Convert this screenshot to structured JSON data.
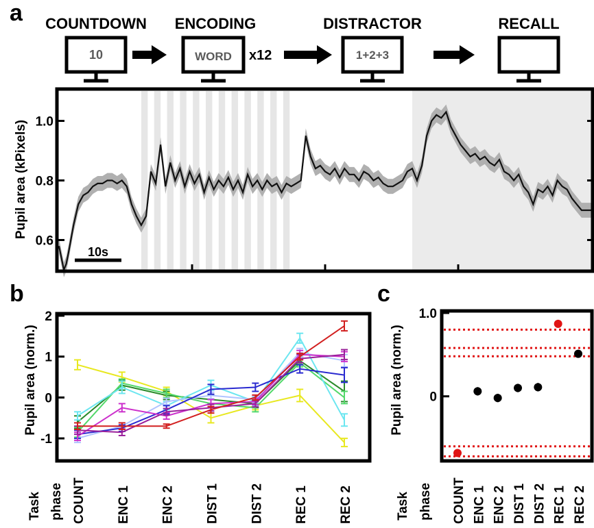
{
  "panels": {
    "a": {
      "letter": "a",
      "flow": {
        "stages": [
          {
            "label": "COUNTDOWN",
            "screen_text": "10"
          },
          {
            "label": "ENCODING",
            "screen_text": "WORD",
            "suffix": "x12"
          },
          {
            "label": "DISTRACTOR",
            "screen_text": "1+2+3"
          },
          {
            "label": "RECALL",
            "screen_text": ""
          }
        ]
      },
      "scale_bar_label": "10s"
    },
    "b": {
      "letter": "b",
      "task_phase_label_1": "Task",
      "task_phase_label_2": "phase"
    },
    "c": {
      "letter": "c",
      "task_phase_label_1": "Task",
      "task_phase_label_2": "phase"
    }
  },
  "chart_data": [
    {
      "id": "a",
      "type": "line",
      "xlabel": "",
      "ylabel": "Pupil area (kPixels)",
      "yticks": [
        0.6,
        0.8,
        1.0
      ],
      "ylim": [
        0.5,
        1.1
      ],
      "time_range_s": [
        0,
        110
      ],
      "scale_bar_s": 10,
      "recall_shaded_range_s": [
        73,
        110
      ],
      "encoding_stripes_range_s": [
        17,
        49
      ],
      "encoding_stripe_count": 12,
      "series": [
        {
          "t": [
            0,
            1,
            1.5,
            2,
            3,
            4,
            5,
            6,
            7,
            8,
            9,
            10,
            11,
            12,
            13,
            14,
            15,
            16,
            17,
            18,
            19,
            20,
            21,
            22,
            23,
            24,
            25,
            26,
            27,
            28,
            29,
            30,
            31,
            32,
            33,
            34,
            35,
            36,
            37,
            38,
            39,
            40,
            41,
            42,
            43,
            44,
            45,
            46,
            47,
            48,
            49,
            50,
            51,
            52,
            53,
            54,
            55,
            56,
            57,
            58,
            59,
            60,
            61,
            62,
            63,
            64,
            65,
            66,
            67,
            68,
            69,
            70,
            71,
            72,
            73,
            74,
            75,
            76,
            77,
            78,
            79,
            80,
            81,
            82,
            83,
            84,
            85,
            86,
            87,
            88,
            89,
            90,
            91,
            92,
            93,
            94,
            95,
            96,
            97,
            98,
            99,
            100,
            101,
            102,
            103,
            104,
            105,
            106,
            107,
            108,
            109,
            110
          ],
          "y": [
            0.58,
            0.5,
            0.52,
            0.56,
            0.65,
            0.72,
            0.75,
            0.76,
            0.78,
            0.79,
            0.79,
            0.8,
            0.8,
            0.79,
            0.8,
            0.78,
            0.72,
            0.68,
            0.65,
            0.68,
            0.83,
            0.79,
            0.92,
            0.78,
            0.86,
            0.8,
            0.84,
            0.78,
            0.83,
            0.79,
            0.82,
            0.76,
            0.81,
            0.77,
            0.8,
            0.78,
            0.81,
            0.77,
            0.8,
            0.76,
            0.82,
            0.78,
            0.8,
            0.77,
            0.8,
            0.78,
            0.79,
            0.76,
            0.79,
            0.78,
            0.79,
            0.8,
            0.95,
            0.88,
            0.84,
            0.85,
            0.83,
            0.82,
            0.84,
            0.81,
            0.84,
            0.82,
            0.82,
            0.8,
            0.83,
            0.82,
            0.8,
            0.81,
            0.79,
            0.78,
            0.78,
            0.79,
            0.8,
            0.83,
            0.84,
            0.8,
            0.85,
            0.95,
            1.0,
            1.02,
            1.01,
            1.03,
            0.98,
            0.95,
            0.92,
            0.9,
            0.88,
            0.89,
            0.87,
            0.88,
            0.86,
            0.85,
            0.87,
            0.83,
            0.82,
            0.8,
            0.82,
            0.78,
            0.76,
            0.72,
            0.77,
            0.76,
            0.78,
            0.75,
            0.8,
            0.78,
            0.77,
            0.74,
            0.72,
            0.7,
            0.7,
            0.7
          ],
          "band": 0.025
        }
      ]
    },
    {
      "id": "b",
      "type": "line",
      "xlabel": "",
      "ylabel": "Pupil area (norm.)",
      "categories": [
        "COUNT",
        "ENC 1",
        "ENC 2",
        "DIST 1",
        "DIST 2",
        "REC 1",
        "REC 2"
      ],
      "ylim": [
        -1.5,
        2
      ],
      "yticks": [
        -1,
        0,
        1,
        2
      ],
      "series": [
        {
          "color": "#e8e820",
          "values": [
            0.8,
            0.5,
            0.15,
            -0.5,
            -0.2,
            0.05,
            -1.1
          ],
          "err": [
            0.12,
            0.12,
            0.1,
            0.12,
            0.1,
            0.15,
            0.1
          ]
        },
        {
          "color": "#2a8a2a",
          "values": [
            -0.6,
            0.3,
            0.05,
            -0.05,
            -0.15,
            0.9,
            0.15
          ],
          "err": [
            0.15,
            0.12,
            0.1,
            0.1,
            0.1,
            0.1,
            0.25
          ]
        },
        {
          "color": "#52d86a",
          "values": [
            -0.85,
            0.35,
            0.1,
            -0.15,
            -0.25,
            0.85,
            0.0
          ],
          "err": [
            0.12,
            0.1,
            0.1,
            0.1,
            0.1,
            0.1,
            0.15
          ]
        },
        {
          "color": "#6ce6f0",
          "values": [
            -0.45,
            0.25,
            -0.2,
            0.3,
            -0.1,
            1.45,
            -0.55
          ],
          "err": [
            0.1,
            0.15,
            0.1,
            0.12,
            0.1,
            0.12,
            0.15
          ]
        },
        {
          "color": "#b0c4ff",
          "values": [
            -1.0,
            -0.7,
            -0.1,
            0.05,
            -0.05,
            1.1,
            0.9
          ],
          "err": [
            0.1,
            0.08,
            0.08,
            0.08,
            0.08,
            0.1,
            0.15
          ]
        },
        {
          "color": "#2a2ad0",
          "values": [
            -0.9,
            -0.75,
            -0.3,
            0.2,
            0.25,
            0.7,
            0.55
          ],
          "err": [
            0.1,
            0.08,
            0.1,
            0.12,
            0.1,
            0.1,
            0.18
          ]
        },
        {
          "color": "#cc30cc",
          "values": [
            -0.95,
            -0.25,
            -0.45,
            -0.15,
            -0.1,
            1.05,
            1.0
          ],
          "err": [
            0.1,
            0.1,
            0.08,
            0.1,
            0.08,
            0.1,
            0.12
          ]
        },
        {
          "color": "#9a209a",
          "values": [
            -0.8,
            -0.85,
            -0.35,
            -0.25,
            -0.15,
            0.95,
            1.05
          ],
          "err": [
            0.1,
            0.08,
            0.08,
            0.08,
            0.08,
            0.1,
            0.12
          ]
        },
        {
          "color": "#d22020",
          "values": [
            -0.7,
            -0.7,
            -0.7,
            -0.3,
            0.0,
            1.0,
            1.75
          ],
          "err": [
            0.08,
            0.08,
            0.05,
            0.08,
            0.06,
            0.08,
            0.12
          ]
        }
      ]
    },
    {
      "id": "c",
      "type": "scatter",
      "xlabel": "",
      "ylabel": "Pupil area (norm.)",
      "categories": [
        "COUNT",
        "ENC 1",
        "ENC 2",
        "DIST 1",
        "DIST 2",
        "REC 1",
        "REC 2"
      ],
      "ylim": [
        -0.75,
        1.0
      ],
      "yticks": [
        0,
        1.0
      ],
      "ytick_labels": [
        "0",
        "1.0"
      ],
      "values": [
        -0.68,
        0.06,
        -0.02,
        0.1,
        0.11,
        0.87,
        0.51
      ],
      "err": [
        0.04,
        0.05,
        0.05,
        0.05,
        0.05,
        0.04,
        0.04
      ],
      "colors": [
        "#e01414",
        "#000000",
        "#000000",
        "#000000",
        "#000000",
        "#e01414",
        "#000000"
      ],
      "marker_colors": [
        "red",
        "black",
        "black",
        "black",
        "black",
        "red",
        "red"
      ],
      "reference_lines": [
        0.8,
        0.58,
        0.48,
        -0.6,
        -0.72
      ],
      "reference_line_color": "#e01414"
    }
  ]
}
